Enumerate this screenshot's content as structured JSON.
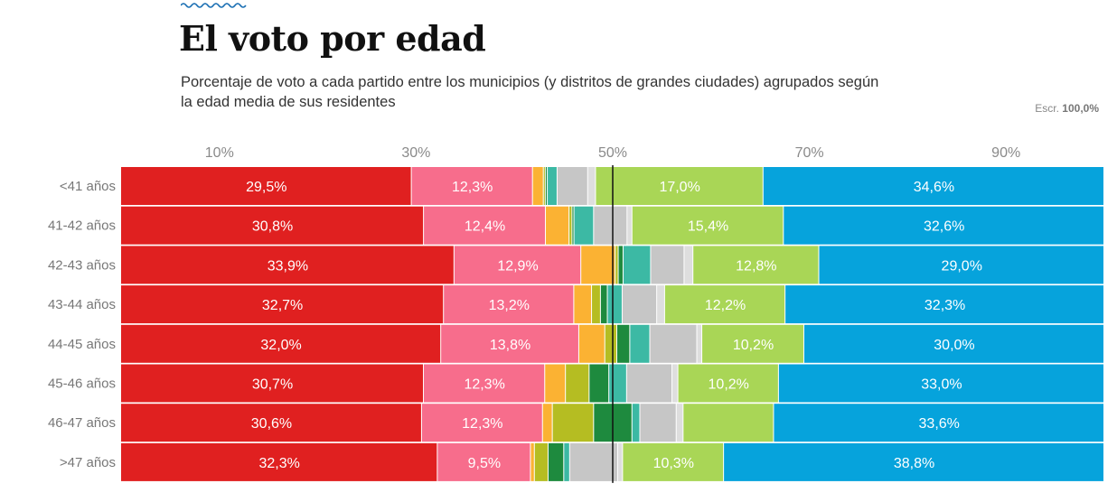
{
  "header": {
    "title": "El voto por edad",
    "subtitle": "Porcentaje de voto a cada partido entre los municipios (y distritos de grandes ciudades) agrupados según la edad media de sus residentes",
    "escr_label": "Escr.",
    "escr_value": "100,0%"
  },
  "chart_data": {
    "type": "bar",
    "orientation": "horizontal-stacked",
    "title": "El voto por edad",
    "xlim": [
      0,
      100
    ],
    "xticks": [
      10,
      30,
      50,
      70,
      90
    ],
    "xtick_labels": [
      "10%",
      "30%",
      "50%",
      "70%",
      "90%"
    ],
    "reference_line": 50,
    "categories": [
      "<41 años",
      "41-42 años",
      "42-43 años",
      "43-44 años",
      "44-45 años",
      "45-46 años",
      "46-47 años",
      ">47 años"
    ],
    "series": [
      {
        "name": "Rojo",
        "color": "#e02020",
        "values": [
          29.5,
          30.8,
          33.9,
          32.7,
          32.0,
          30.7,
          30.6,
          32.3
        ],
        "labels": [
          "29,5%",
          "30,8%",
          "33,9%",
          "32,7%",
          "32,0%",
          "30,7%",
          "30,6%",
          "32,3%"
        ]
      },
      {
        "name": "Rosa",
        "color": "#f76d8c",
        "values": [
          12.3,
          12.4,
          12.9,
          13.2,
          13.8,
          12.3,
          12.3,
          9.5
        ],
        "labels": [
          "12,3%",
          "12,4%",
          "12,9%",
          "13,2%",
          "13,8%",
          "12,3%",
          "12,3%",
          "9,5%"
        ]
      },
      {
        "name": "Naranja",
        "color": "#fbb233",
        "values": [
          1.1,
          2.4,
          3.5,
          1.8,
          2.6,
          2.1,
          1.0,
          0.4
        ]
      },
      {
        "name": "Oliva",
        "color": "#b5bd22",
        "values": [
          0.2,
          0.3,
          0.3,
          0.9,
          1.2,
          2.4,
          4.2,
          1.4
        ]
      },
      {
        "name": "Verde oscuro",
        "color": "#1e8a3e",
        "values": [
          0.2,
          0.2,
          0.5,
          0.7,
          1.3,
          2.0,
          3.9,
          1.6
        ]
      },
      {
        "name": "Turquesa",
        "color": "#3cb9a4",
        "values": [
          1.0,
          2.0,
          2.8,
          1.5,
          2.0,
          1.8,
          0.8,
          0.6
        ]
      },
      {
        "name": "Gris",
        "color": "#c6c6c6",
        "values": [
          3.1,
          3.4,
          3.4,
          3.5,
          4.7,
          4.6,
          3.7,
          4.9
        ]
      },
      {
        "name": "Gris claro",
        "color": "#dedede",
        "values": [
          0.8,
          0.5,
          0.9,
          0.8,
          0.5,
          0.6,
          0.7,
          0.5
        ]
      },
      {
        "name": "Verde claro",
        "color": "#a9d656",
        "values": [
          17.0,
          15.4,
          12.8,
          12.2,
          10.2,
          10.2,
          9.2,
          10.3
        ],
        "labels": [
          "17,0%",
          "15,4%",
          "12,8%",
          "12,2%",
          "10,2%",
          "10,2%",
          "",
          "10,3%"
        ]
      },
      {
        "name": "Azul",
        "color": "#06a3dc",
        "values": [
          34.6,
          32.6,
          29.0,
          32.3,
          30.0,
          33.0,
          33.6,
          38.8
        ],
        "labels": [
          "34,6%",
          "32,6%",
          "29,0%",
          "32,3%",
          "30,0%",
          "33,0%",
          "33,6%",
          "38,8%"
        ]
      }
    ]
  }
}
